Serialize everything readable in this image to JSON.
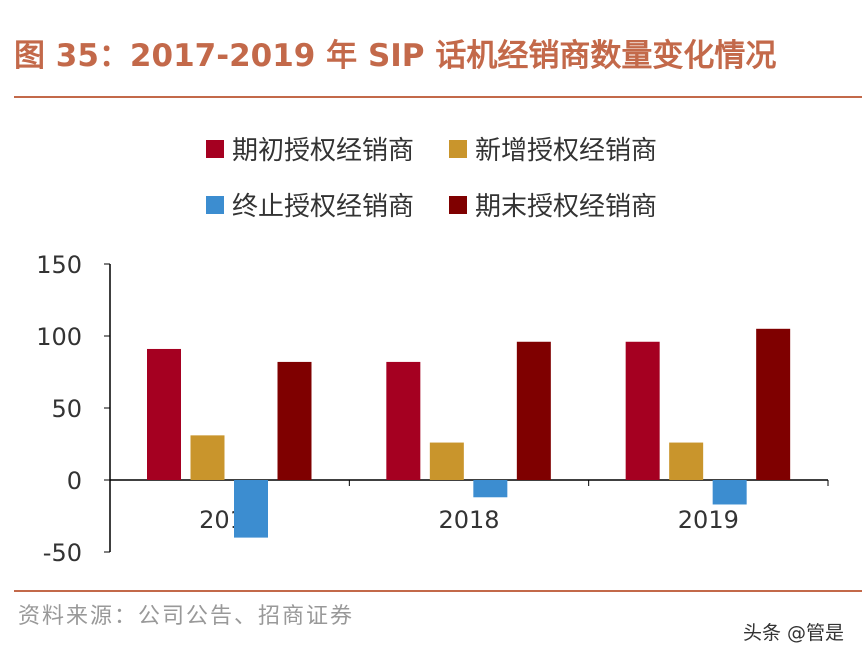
{
  "title": "图 35：2017-2019 年 SIP 话机经销商数量变化情况",
  "source": "资料来源：公司公告、招商证券",
  "watermark": "头条 @管是",
  "chart_data": {
    "type": "bar",
    "categories": [
      "2017",
      "2018",
      "2019"
    ],
    "series": [
      {
        "name": "期初授权经销商",
        "color": "#a50021",
        "values": [
          91,
          82,
          96
        ]
      },
      {
        "name": "新增授权经销商",
        "color": "#c9952c",
        "values": [
          31,
          26,
          26
        ]
      },
      {
        "name": "终止授权经销商",
        "color": "#3c8dd0",
        "values": [
          -40,
          -12,
          -17
        ]
      },
      {
        "name": "期末授权经销商",
        "color": "#7f0000",
        "values": [
          82,
          96,
          105
        ]
      }
    ],
    "yticks": [
      "150",
      "100",
      "50",
      "0",
      "-50"
    ],
    "ylim": [
      -50,
      150
    ],
    "legend": "top",
    "grid": false
  }
}
